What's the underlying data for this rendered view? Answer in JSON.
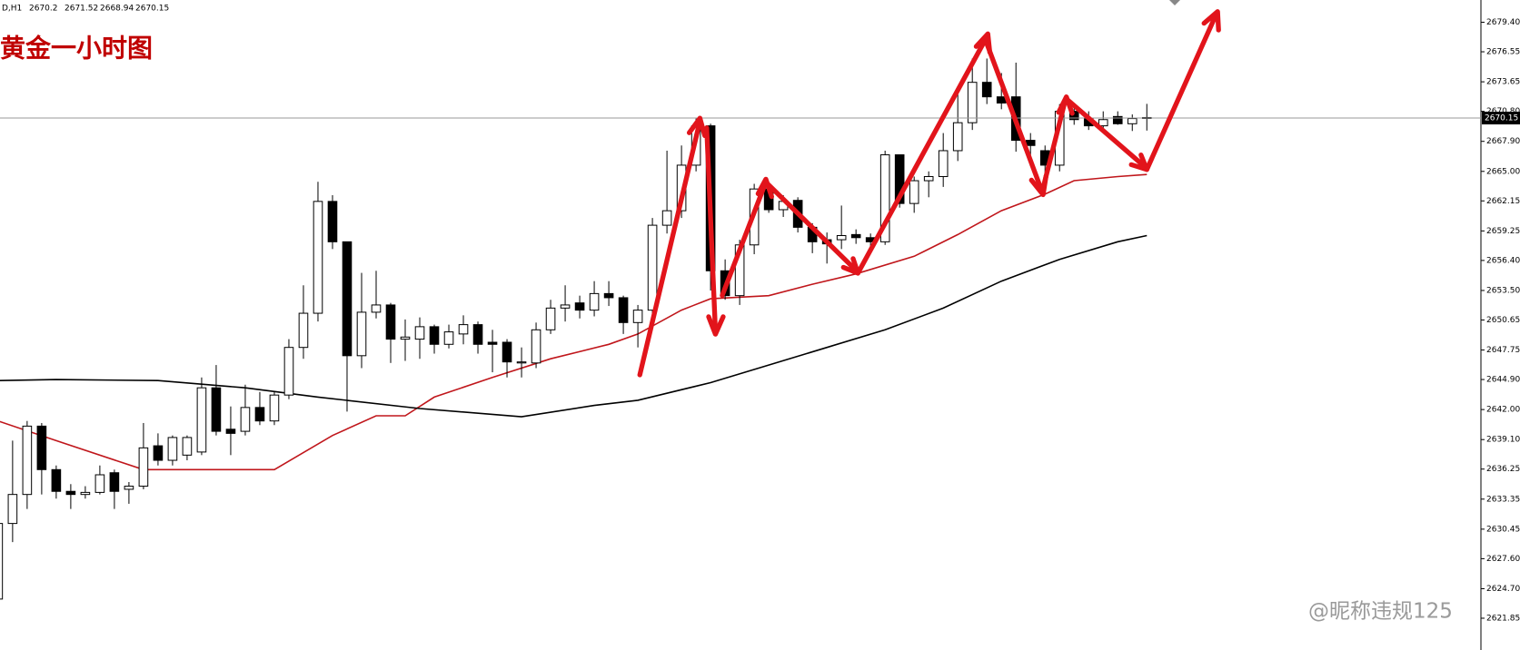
{
  "chart_data": {
    "type": "candlestick",
    "title": "黄金一小时图",
    "symbol": "D,H1",
    "watermark": "@昵称违规125",
    "open": [
      2623.7,
      2631.0,
      2633.8,
      2640.4,
      2636.2,
      2634.1,
      2633.8,
      2634.0,
      2635.9,
      2634.3,
      2634.6,
      2638.5,
      2637.1,
      2637.6,
      2637.9,
      2644.1,
      2640.1,
      2639.9,
      2642.2,
      2640.9,
      2643.4,
      2648.0,
      2651.3,
      2662.1,
      2658.2,
      2647.2,
      2651.4,
      2652.1,
      2648.8,
      2648.8,
      2650.0,
      2648.3,
      2649.3,
      2650.2,
      2648.5,
      2648.5,
      2646.5,
      2646.5,
      2649.7,
      2651.8,
      2652.3,
      2651.6,
      2653.2,
      2652.8,
      2650.4,
      2651.6,
      2659.8,
      2661.2,
      2665.6,
      2669.4,
      2655.4,
      2653.0,
      2657.9,
      2663.3,
      2661.3,
      2662.2,
      2659.6,
      2658.4,
      2658.4,
      2658.9,
      2658.6,
      2658.2,
      2666.6,
      2661.9,
      2664.1,
      2664.5,
      2667.0,
      2669.7,
      2673.6,
      2672.2,
      2672.2,
      2668.0,
      2667.0,
      2665.6,
      2670.8,
      2670.1,
      2669.4,
      2670.3,
      2669.6,
      2670.2
    ],
    "high": [
      2631.5,
      2639.0,
      2640.9,
      2640.7,
      2636.6,
      2634.8,
      2634.6,
      2636.6,
      2636.2,
      2635.0,
      2640.7,
      2639.7,
      2639.5,
      2639.5,
      2645.1,
      2646.3,
      2642.3,
      2644.4,
      2643.7,
      2643.7,
      2648.8,
      2654.0,
      2664.0,
      2662.7,
      2658.2,
      2655.2,
      2655.4,
      2652.3,
      2650.7,
      2650.9,
      2650.2,
      2650.2,
      2651.1,
      2650.5,
      2649.7,
      2648.8,
      2648.0,
      2650.4,
      2652.6,
      2654.0,
      2653.0,
      2654.4,
      2654.4,
      2653.0,
      2652.1,
      2660.5,
      2667.0,
      2667.5,
      2670.1,
      2669.6,
      2656.5,
      2658.4,
      2663.8,
      2663.8,
      2662.7,
      2662.5,
      2660.0,
      2659.1,
      2661.7,
      2659.4,
      2659.0,
      2667.0,
      2666.6,
      2664.5,
      2665.0,
      2668.7,
      2672.5,
      2675.9,
      2675.9,
      2674.5,
      2675.5,
      2668.7,
      2667.5,
      2671.5,
      2671.5,
      2670.8,
      2670.8,
      2670.8,
      2670.5,
      2671.52
    ],
    "low": [
      2623.6,
      2629.2,
      2632.4,
      2633.8,
      2633.4,
      2632.4,
      2633.4,
      2633.8,
      2632.4,
      2632.9,
      2634.3,
      2636.6,
      2636.6,
      2637.1,
      2637.6,
      2639.5,
      2637.6,
      2639.5,
      2640.5,
      2640.5,
      2643.0,
      2646.9,
      2650.5,
      2657.5,
      2641.8,
      2646.0,
      2650.8,
      2646.5,
      2646.7,
      2646.9,
      2647.4,
      2647.9,
      2648.3,
      2647.4,
      2645.6,
      2645.1,
      2645.1,
      2646.0,
      2649.3,
      2650.5,
      2650.8,
      2651.0,
      2652.0,
      2649.3,
      2648.0,
      2651.0,
      2659.0,
      2660.5,
      2665.0,
      2653.5,
      2652.6,
      2652.1,
      2657.0,
      2661.0,
      2660.6,
      2659.1,
      2657.1,
      2656.1,
      2657.5,
      2658.0,
      2657.5,
      2657.9,
      2661.5,
      2661.0,
      2662.5,
      2663.5,
      2666.0,
      2669.0,
      2671.5,
      2671.0,
      2666.9,
      2665.5,
      2664.5,
      2665.0,
      2669.5,
      2669.0,
      2669.0,
      2669.5,
      2668.9,
      2668.94
    ],
    "close": [
      2631.0,
      2633.8,
      2640.4,
      2636.2,
      2634.1,
      2633.8,
      2634.0,
      2635.7,
      2634.1,
      2634.6,
      2638.3,
      2637.1,
      2639.3,
      2639.3,
      2644.1,
      2639.9,
      2639.7,
      2642.2,
      2640.9,
      2643.4,
      2648.0,
      2651.3,
      2662.1,
      2658.2,
      2647.2,
      2651.4,
      2652.1,
      2648.8,
      2649.0,
      2650.0,
      2648.3,
      2649.5,
      2650.2,
      2648.3,
      2648.3,
      2646.6,
      2646.6,
      2649.7,
      2651.8,
      2652.1,
      2651.6,
      2653.2,
      2652.8,
      2650.4,
      2651.6,
      2659.8,
      2661.2,
      2665.6,
      2669.4,
      2655.4,
      2653.0,
      2657.9,
      2663.3,
      2661.3,
      2662.1,
      2659.6,
      2658.2,
      2658.0,
      2658.8,
      2658.6,
      2658.2,
      2666.6,
      2661.9,
      2664.1,
      2664.5,
      2667.0,
      2669.7,
      2673.6,
      2672.2,
      2671.6,
      2668.0,
      2667.5,
      2665.6,
      2670.8,
      2670.0,
      2669.4,
      2670.0,
      2669.6,
      2670.1,
      2670.15
    ],
    "overlays": [
      {
        "color": "#c0161b",
        "x": [
          0,
          4,
          10,
          19,
          23,
          26,
          28,
          30,
          34,
          38,
          42,
          44,
          47,
          49,
          53,
          56,
          59,
          63,
          66,
          69,
          72,
          74,
          77,
          79
        ],
        "values": [
          2640.9,
          2639.0,
          2636.2,
          2636.2,
          2639.5,
          2641.4,
          2641.4,
          2643.2,
          2645.1,
          2646.9,
          2648.3,
          2649.3,
          2651.6,
          2652.7,
          2653.0,
          2654.1,
          2655.1,
          2656.8,
          2658.9,
          2661.2,
          2662.8,
          2664.1,
          2664.5,
          2664.7
        ]
      },
      {
        "color": "#000000",
        "x": [
          0,
          4,
          11,
          17,
          22,
          29,
          36,
          41,
          44,
          49,
          53,
          57,
          61,
          65,
          69,
          73,
          77,
          79
        ],
        "values": [
          2644.8,
          2644.9,
          2644.8,
          2644.1,
          2643.2,
          2642.1,
          2641.3,
          2642.4,
          2642.9,
          2644.6,
          2646.3,
          2648.0,
          2649.7,
          2651.8,
          2654.4,
          2656.5,
          2658.2,
          2658.8
        ]
      }
    ],
    "bull_color": "#ffffff",
    "bear_color": "#000000",
    "title_color": "#c00000",
    "ylim": [
      2618.78,
      2681.55
    ],
    "yticks": [
      {
        "value": 2679.4,
        "label": "2679.40"
      },
      {
        "value": 2676.55,
        "label": "2676.55"
      },
      {
        "value": 2673.65,
        "label": "2673.65"
      },
      {
        "value": 2670.8,
        "label": "2670.80"
      },
      {
        "value": 2667.9,
        "label": "2667.90"
      },
      {
        "value": 2665,
        "label": "2665.00"
      },
      {
        "value": 2662.15,
        "label": "2662.15"
      },
      {
        "value": 2659.25,
        "label": "2659.25"
      },
      {
        "value": 2656.4,
        "label": "2656.40"
      },
      {
        "value": 2653.5,
        "label": "2653.50"
      },
      {
        "value": 2650.65,
        "label": "2650.65"
      },
      {
        "value": 2647.75,
        "label": "2647.75"
      },
      {
        "value": 2644.9,
        "label": "2644.90"
      },
      {
        "value": 2642,
        "label": "2642.00"
      },
      {
        "value": 2639.1,
        "label": "2639.10"
      },
      {
        "value": 2636.25,
        "label": "2636.25"
      },
      {
        "value": 2633.35,
        "label": "2633.35"
      },
      {
        "value": 2630.45,
        "label": "2630.45"
      },
      {
        "value": 2627.6,
        "label": "2627.60"
      },
      {
        "value": 2624.7,
        "label": "2624.70"
      },
      {
        "value": 2621.85,
        "label": "2621.85"
      }
    ]
  }
}
